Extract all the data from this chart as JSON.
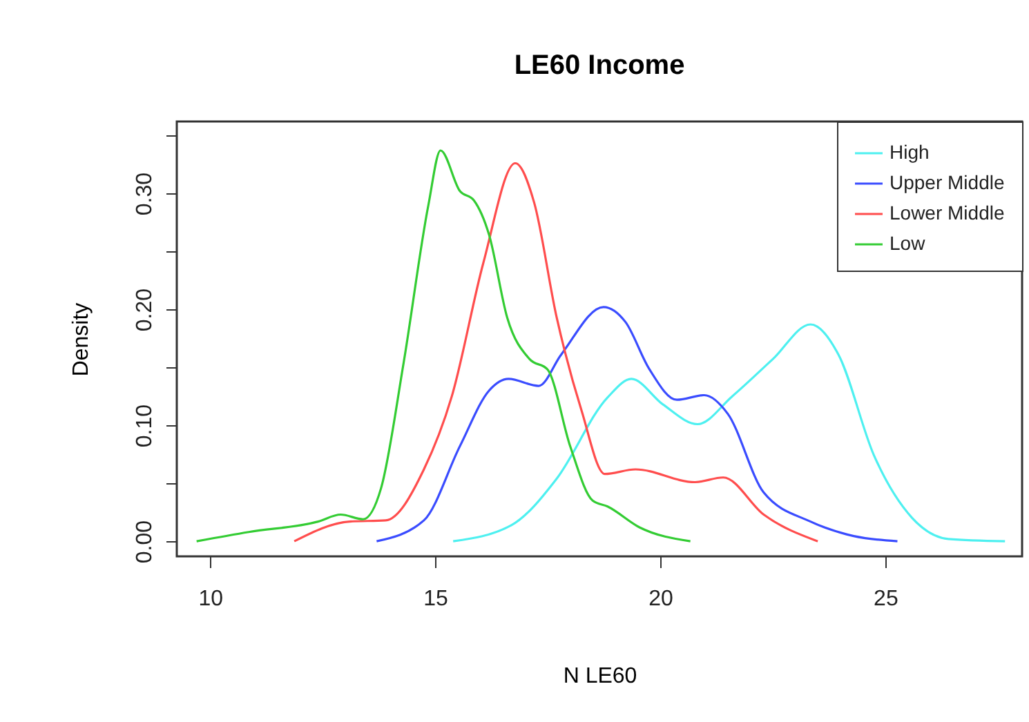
{
  "chart_data": {
    "type": "line",
    "title": "LE60 Income",
    "xlabel": "N LE60",
    "ylabel": "Density",
    "xlim": [
      9.26,
      28.04
    ],
    "ylim": [
      -0.013,
      0.362
    ],
    "xticks": [
      10,
      15,
      20,
      25
    ],
    "yticks": [
      {
        "value": 0,
        "label": "0.00"
      },
      {
        "value": 0.05,
        "label": null
      },
      {
        "value": 0.1,
        "label": "0.10"
      },
      {
        "value": 0.15,
        "label": null
      },
      {
        "value": 0.2,
        "label": "0.20"
      },
      {
        "value": 0.25,
        "label": null
      },
      {
        "value": 0.3,
        "label": "0.30"
      },
      {
        "value": 0.35,
        "label": null
      }
    ],
    "legend": "top right",
    "series": [
      {
        "name": "High",
        "color": "#4ef0f0",
        "x": [
          15.4,
          16.7,
          17.7,
          18.83,
          19.36,
          20.06,
          20.83,
          21.6,
          22.5,
          23.34,
          23.96,
          24.75,
          25.6,
          26.4,
          27.66
        ],
        "values": [
          0,
          0.014,
          0.054,
          0.124,
          0.14,
          0.118,
          0.101,
          0.125,
          0.157,
          0.187,
          0.161,
          0.074,
          0.02,
          0.002,
          0
        ]
      },
      {
        "name": "Upper Middle",
        "color": "#3a4cff",
        "x": [
          13.7,
          14.75,
          15.55,
          16.2,
          16.63,
          17.3,
          17.8,
          18.74,
          19.23,
          19.75,
          20.37,
          20.98,
          21.5,
          22.3,
          23.34,
          24.14,
          25.27
        ],
        "values": [
          0,
          0.018,
          0.082,
          0.13,
          0.14,
          0.134,
          0.161,
          0.202,
          0.189,
          0.149,
          0.122,
          0.126,
          0.11,
          0.042,
          0.017,
          0.006,
          0
        ]
      },
      {
        "name": "Lower Middle",
        "color": "#ff4d4d",
        "x": [
          11.87,
          13.1,
          13.9,
          14.75,
          15.37,
          16.07,
          16.78,
          17.2,
          17.7,
          18.25,
          18.77,
          19.45,
          20.77,
          21.4,
          22.3,
          23.5
        ],
        "values": [
          0,
          0.017,
          0.018,
          0.062,
          0.125,
          0.24,
          0.326,
          0.292,
          0.193,
          0.113,
          0.058,
          0.062,
          0.051,
          0.055,
          0.023,
          0
        ]
      },
      {
        "name": "Low",
        "color": "#33cc33",
        "x": [
          9.7,
          10.86,
          12.4,
          12.9,
          13.4,
          13.8,
          14.3,
          14.85,
          15.12,
          15.55,
          15.86,
          16.2,
          16.6,
          17.1,
          17.5,
          18.0,
          18.5,
          18.83,
          19.54,
          20.67
        ],
        "values": [
          0,
          0.008,
          0.017,
          0.023,
          0.019,
          0.046,
          0.154,
          0.29,
          0.337,
          0.302,
          0.294,
          0.264,
          0.193,
          0.157,
          0.148,
          0.082,
          0.035,
          0.03,
          0.012,
          0
        ]
      }
    ]
  }
}
